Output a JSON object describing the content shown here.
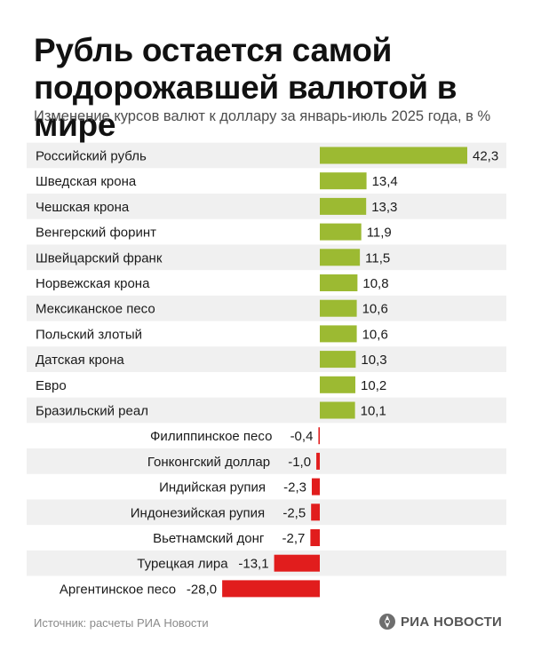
{
  "title": "Рубль остается самой подорожавшей валютой в мире",
  "subtitle": "Изменение курсов валют к доллару за январь-июль 2025 года, в %",
  "source": "Источник: расчеты РИА Новости",
  "logo": {
    "text": "РИА НОВОСТИ",
    "icon": "ria-logo-icon"
  },
  "colors": {
    "positive": "#9cba32",
    "negative": "#e11d1d",
    "stripe": "#f0f0f0"
  },
  "chart_data": {
    "type": "bar",
    "orientation": "horizontal",
    "categories": [
      "Российский рубль",
      "Шведская крона",
      "Чешская крона",
      "Венгерский форинт",
      "Швейцарский франк",
      "Норвежская крона",
      "Мексиканское песо",
      "Польский злотый",
      "Датская крона",
      "Евро",
      "Бразильский реал",
      "Филиппинское песо",
      "Гонконгский доллар",
      "Индийская рупия",
      "Индонезийская рупия",
      "Вьетнамский донг",
      "Турецкая лира",
      "Аргентинское песо"
    ],
    "values": [
      42.3,
      13.4,
      13.3,
      11.9,
      11.5,
      10.8,
      10.6,
      10.6,
      10.3,
      10.2,
      10.1,
      -0.4,
      -1.0,
      -2.3,
      -2.5,
      -2.7,
      -13.1,
      -28.0
    ],
    "value_labels": [
      "42,3",
      "13,4",
      "13,3",
      "11,9",
      "11,5",
      "10,8",
      "10,6",
      "10,6",
      "10,3",
      "10,2",
      "10,1",
      "-0,4",
      "-1,0",
      "-2,3",
      "-2,5",
      "-2,7",
      "-13,1",
      "-28,0"
    ],
    "xlim": [
      -28.0,
      42.3
    ],
    "grid": false,
    "legend": "none"
  }
}
